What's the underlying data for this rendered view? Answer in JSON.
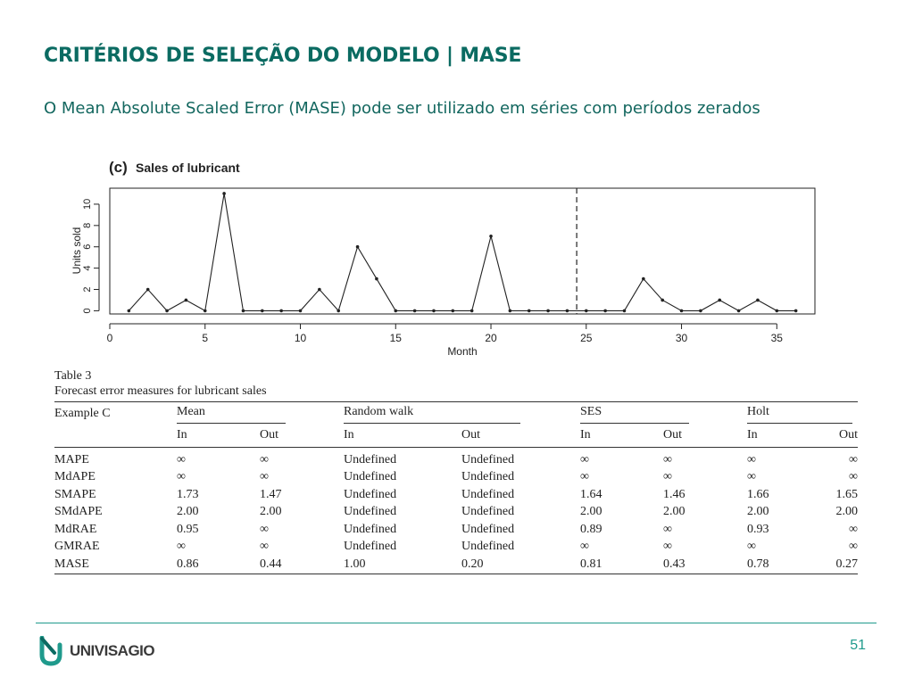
{
  "slide": {
    "title": "CRITÉRIOS DE SELEÇÃO DO MODELO | MASE",
    "subtitle": "O Mean Absolute Scaled Error (MASE) pode ser utilizado em séries com períodos zerados",
    "page_number": "51",
    "logo_text": "UNIVISAGIO",
    "accent_color": "#0b6b62",
    "line_color": "#1f9a8c"
  },
  "chart_data": {
    "type": "line",
    "title_prefix": "(c)",
    "title": "Sales of lubricant",
    "xlabel": "Month",
    "ylabel": "Units sold",
    "x": [
      1,
      2,
      3,
      4,
      5,
      6,
      7,
      8,
      9,
      10,
      11,
      12,
      13,
      14,
      15,
      16,
      17,
      18,
      19,
      20,
      21,
      22,
      23,
      24,
      25,
      26,
      27,
      28,
      29,
      30,
      31,
      32,
      33,
      34,
      35,
      36
    ],
    "y": [
      0,
      2,
      0,
      1,
      0,
      11,
      0,
      0,
      0,
      0,
      2,
      0,
      6,
      3,
      0,
      0,
      0,
      0,
      0,
      7,
      0,
      0,
      0,
      0,
      0,
      0,
      0,
      3,
      1,
      0,
      0,
      1,
      0,
      1,
      0,
      0
    ],
    "xlim": [
      0,
      37
    ],
    "ylim": [
      -0.3,
      11.5
    ],
    "xticks": [
      0,
      5,
      10,
      15,
      20,
      25,
      30,
      35
    ],
    "yticks": [
      0,
      2,
      4,
      6,
      8,
      10
    ],
    "split_line_x": 24.5,
    "grid": false
  },
  "table": {
    "caption_line1": "Table 3",
    "caption_line2": "Forecast error measures for lubricant sales",
    "corner_label": "Example C",
    "groups": [
      "Mean",
      "Random walk",
      "SES",
      "Holt"
    ],
    "subheaders": [
      "In",
      "Out",
      "In",
      "Out",
      "In",
      "Out",
      "In",
      "Out"
    ],
    "rows": [
      {
        "label": "MAPE",
        "cells": [
          "∞",
          "∞",
          "Undefined",
          "Undefined",
          "∞",
          "∞",
          "∞",
          "∞"
        ]
      },
      {
        "label": "MdAPE",
        "cells": [
          "∞",
          "∞",
          "Undefined",
          "Undefined",
          "∞",
          "∞",
          "∞",
          "∞"
        ]
      },
      {
        "label": "SMAPE",
        "cells": [
          "1.73",
          "1.47",
          "Undefined",
          "Undefined",
          "1.64",
          "1.46",
          "1.66",
          "1.65"
        ]
      },
      {
        "label": "SMdAPE",
        "cells": [
          "2.00",
          "2.00",
          "Undefined",
          "Undefined",
          "2.00",
          "2.00",
          "2.00",
          "2.00"
        ]
      },
      {
        "label": "MdRAE",
        "cells": [
          "0.95",
          "∞",
          "Undefined",
          "Undefined",
          "0.89",
          "∞",
          "0.93",
          "∞"
        ]
      },
      {
        "label": "GMRAE",
        "cells": [
          "∞",
          "∞",
          "Undefined",
          "Undefined",
          "∞",
          "∞",
          "∞",
          "∞"
        ]
      },
      {
        "label": "MASE",
        "cells": [
          "0.86",
          "0.44",
          "1.00",
          "0.20",
          "0.81",
          "0.43",
          "0.78",
          "0.27"
        ]
      }
    ]
  }
}
